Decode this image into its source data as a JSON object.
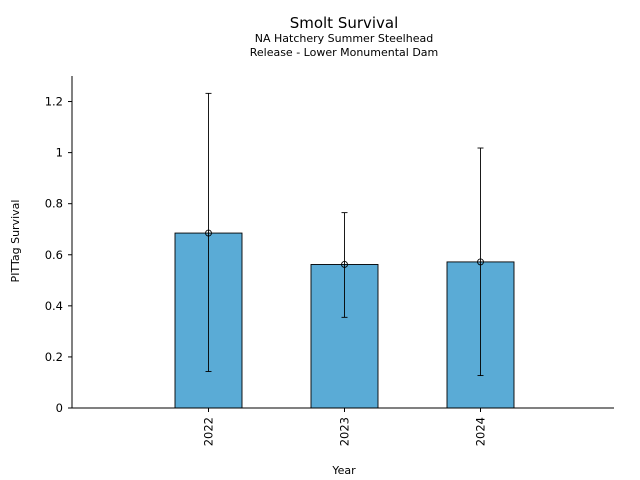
{
  "chart_data": {
    "type": "bar",
    "title": "Smolt Survival",
    "subtitle_lines": [
      "NA Hatchery Summer Steelhead",
      "Release - Lower Monumental Dam"
    ],
    "xlabel": "Year",
    "ylabel": "PITTag Survival",
    "categories": [
      "2022",
      "2023",
      "2024"
    ],
    "values": [
      0.685,
      0.562,
      0.572
    ],
    "error_low": [
      0.143,
      0.355,
      0.127
    ],
    "error_high": [
      1.232,
      0.765,
      1.018
    ],
    "ylim": [
      0,
      1.3
    ],
    "yticks": [
      0,
      0.2,
      0.4,
      0.6,
      0.8,
      1,
      1.2
    ],
    "ytick_labels": [
      "0",
      "0.2",
      "0.4",
      "0.6",
      "0.8",
      "1",
      "1.2"
    ],
    "bar_color": "#5aabd6",
    "grid": false,
    "legend": "none"
  }
}
